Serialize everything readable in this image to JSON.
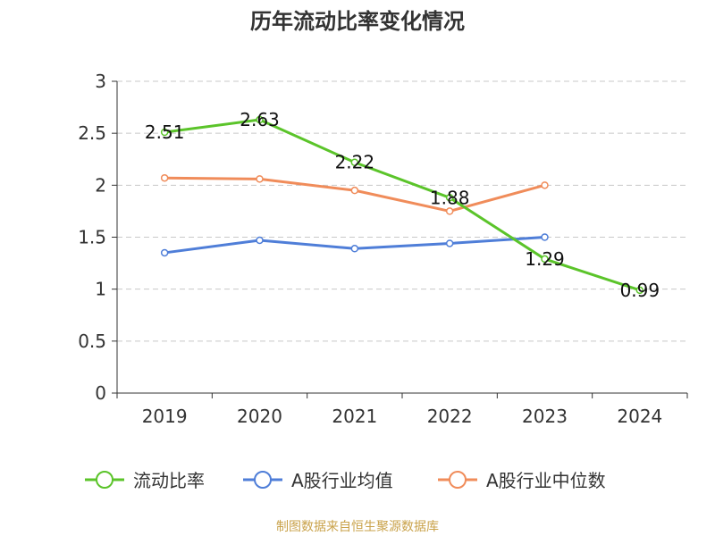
{
  "chart_data": {
    "type": "line",
    "title": "历年流动比率变化情况",
    "xlabel": "",
    "ylabel": "",
    "categories": [
      "2019",
      "2020",
      "2021",
      "2022",
      "2023",
      "2024"
    ],
    "ylim": [
      0,
      3
    ],
    "yticks": [
      "0",
      "0.5",
      "1",
      "1.5",
      "2",
      "2.5",
      "3"
    ],
    "yticks_values": [
      0,
      0.5,
      1,
      1.5,
      2,
      2.5,
      3
    ],
    "grid": true,
    "legend_position": "bottom",
    "series": [
      {
        "name": "流动比率",
        "color": "#5bc42a",
        "values": [
          2.51,
          2.63,
          2.22,
          1.88,
          1.29,
          0.99
        ],
        "labels": [
          "2.51",
          "2.63",
          "2.22",
          "1.88",
          "1.29",
          "0.99"
        ]
      },
      {
        "name": "A股行业均值",
        "color": "#4f7ed8",
        "values": [
          1.35,
          1.47,
          1.39,
          1.44,
          1.5,
          null
        ]
      },
      {
        "name": "A股行业中位数",
        "color": "#f08c5a",
        "values": [
          2.07,
          2.06,
          1.95,
          1.75,
          2.0,
          null
        ]
      }
    ]
  },
  "source": "制图数据来自恒生聚源数据库"
}
